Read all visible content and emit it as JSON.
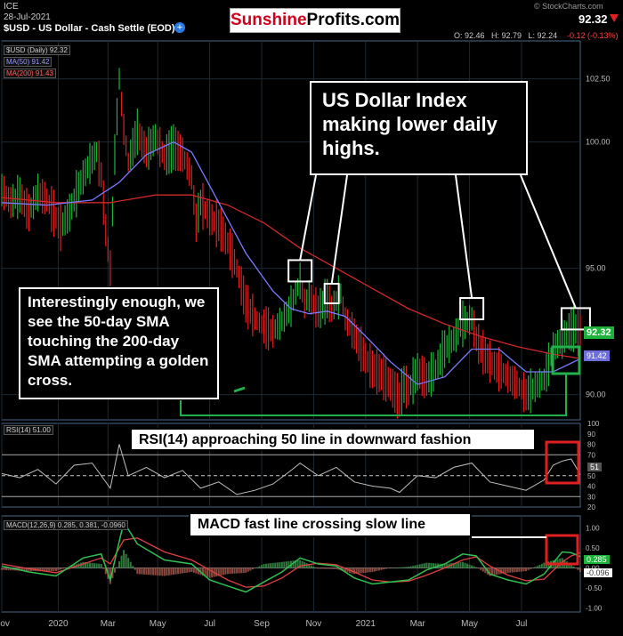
{
  "header": {
    "exchange": "ICE",
    "date": "28-Jul-2021",
    "title": "$USD - US Dollar - Cash Settle (EOD)",
    "credit": "© StockCharts.com",
    "last_price": "92.32",
    "ohlc": "O: 92.46   H: 92.79   L: 92.24",
    "change": "-0.12 (-0.13%)",
    "logo_part1": "Sunshine",
    "logo_part2": "Profits.com"
  },
  "legend": {
    "usd": "$USD (Daily) 92.32",
    "ma50": "MA(50) 91.42",
    "ma200": "MA(200) 91.43",
    "rsi": "RSI(14) 51.00",
    "macd": "MACD(12,26,9) 0.285, 0.381, -0.0960"
  },
  "annotations": {
    "highs": "US Dollar Index making lower daily highs.",
    "golden": "Interestingly enough, we see the 50-day SMA touching the 200-day SMA attempting a golden cross.",
    "rsi": "RSI(14) approaching 50 line in downward fashion",
    "macd": "MACD fast line crossing slow line"
  },
  "badges": {
    "price": "92.32",
    "ma": "91.42",
    "rsi": "51",
    "macd_fast": "0.285",
    "macd_hist": "-0.096"
  },
  "colors": {
    "price_up": "#1db33b",
    "price_down": "#e02020",
    "ma50": "#7b7bff",
    "ma200": "#d02828",
    "highlight_box": "#e02020",
    "cross_box": "#22b04b"
  },
  "chart_data": {
    "type": "line",
    "x_labels": [
      "Nov",
      "2020",
      "Mar",
      "May",
      "Jul",
      "Sep",
      "Nov",
      "2021",
      "Mar",
      "May",
      "Jul"
    ],
    "price_ticks": [
      90.0,
      95.0,
      100.0,
      102.5
    ],
    "price_range": [
      89,
      104
    ],
    "rsi_ticks": [
      20,
      30,
      40,
      50,
      60,
      70,
      80,
      90,
      100
    ],
    "rsi_range": [
      20,
      100
    ],
    "macd_ticks": [
      -1.0,
      -0.5,
      0,
      0.5,
      1.0
    ],
    "macd_range": [
      -1.1,
      1.3
    ],
    "price_series": [
      {
        "t": 0,
        "v": 98.1
      },
      {
        "t": 2,
        "v": 97.6
      },
      {
        "t": 4,
        "v": 97.9
      },
      {
        "t": 6,
        "v": 97.2
      },
      {
        "t": 8,
        "v": 98.0
      },
      {
        "t": 10,
        "v": 97.7
      },
      {
        "t": 12,
        "v": 97.0
      },
      {
        "t": 13,
        "v": 96.6
      },
      {
        "t": 15,
        "v": 97.2
      },
      {
        "t": 17,
        "v": 98.2
      },
      {
        "t": 19,
        "v": 99.0
      },
      {
        "t": 21,
        "v": 99.6
      },
      {
        "t": 22,
        "v": 98.7
      },
      {
        "t": 23,
        "v": 96.5
      },
      {
        "t": 24,
        "v": 95.0
      },
      {
        "t": 25,
        "v": 99.5
      },
      {
        "t": 26,
        "v": 102.5
      },
      {
        "t": 27,
        "v": 100.5
      },
      {
        "t": 28,
        "v": 99.2
      },
      {
        "t": 30,
        "v": 100.4
      },
      {
        "t": 32,
        "v": 99.6
      },
      {
        "t": 34,
        "v": 100.2
      },
      {
        "t": 36,
        "v": 99.4
      },
      {
        "t": 38,
        "v": 99.8
      },
      {
        "t": 40,
        "v": 99.5
      },
      {
        "t": 42,
        "v": 98.6
      },
      {
        "t": 43,
        "v": 96.8
      },
      {
        "t": 44,
        "v": 97.6
      },
      {
        "t": 46,
        "v": 97.0
      },
      {
        "t": 48,
        "v": 96.7
      },
      {
        "t": 50,
        "v": 96.0
      },
      {
        "t": 52,
        "v": 95.0
      },
      {
        "t": 54,
        "v": 93.6
      },
      {
        "t": 56,
        "v": 93.0
      },
      {
        "t": 58,
        "v": 92.7
      },
      {
        "t": 60,
        "v": 92.5
      },
      {
        "t": 62,
        "v": 92.9
      },
      {
        "t": 64,
        "v": 93.5
      },
      {
        "t": 66,
        "v": 94.5
      },
      {
        "t": 67,
        "v": 93.6
      },
      {
        "t": 68,
        "v": 93.9
      },
      {
        "t": 70,
        "v": 93.3
      },
      {
        "t": 72,
        "v": 93.8
      },
      {
        "t": 73,
        "v": 93.4
      },
      {
        "t": 75,
        "v": 94.0
      },
      {
        "t": 76,
        "v": 93.0
      },
      {
        "t": 78,
        "v": 92.4
      },
      {
        "t": 80,
        "v": 91.6
      },
      {
        "t": 82,
        "v": 91.0
      },
      {
        "t": 84,
        "v": 90.8
      },
      {
        "t": 86,
        "v": 90.4
      },
      {
        "t": 88,
        "v": 89.8
      },
      {
        "t": 89,
        "v": 90.4
      },
      {
        "t": 90,
        "v": 90.2
      },
      {
        "t": 92,
        "v": 90.9
      },
      {
        "t": 94,
        "v": 90.6
      },
      {
        "t": 96,
        "v": 91.0
      },
      {
        "t": 98,
        "v": 91.8
      },
      {
        "t": 100,
        "v": 92.2
      },
      {
        "t": 102,
        "v": 92.8
      },
      {
        "t": 104,
        "v": 93.0
      },
      {
        "t": 105,
        "v": 92.2
      },
      {
        "t": 106,
        "v": 91.8
      },
      {
        "t": 108,
        "v": 91.3
      },
      {
        "t": 110,
        "v": 91.0
      },
      {
        "t": 112,
        "v": 90.7
      },
      {
        "t": 114,
        "v": 90.4
      },
      {
        "t": 116,
        "v": 90.0
      },
      {
        "t": 118,
        "v": 90.3
      },
      {
        "t": 120,
        "v": 90.6
      },
      {
        "t": 122,
        "v": 91.8
      },
      {
        "t": 124,
        "v": 92.2
      },
      {
        "t": 125,
        "v": 92.4
      },
      {
        "t": 126,
        "v": 92.6
      },
      {
        "t": 127,
        "v": 92.6
      },
      {
        "t": 128,
        "v": 92.32
      }
    ],
    "ma50_series": [
      {
        "t": 0,
        "v": 97.6
      },
      {
        "t": 10,
        "v": 97.5
      },
      {
        "t": 20,
        "v": 97.7
      },
      {
        "t": 26,
        "v": 98.4
      },
      {
        "t": 32,
        "v": 99.5
      },
      {
        "t": 38,
        "v": 100.0
      },
      {
        "t": 42,
        "v": 99.6
      },
      {
        "t": 48,
        "v": 97.6
      },
      {
        "t": 54,
        "v": 95.6
      },
      {
        "t": 60,
        "v": 94.1
      },
      {
        "t": 64,
        "v": 93.4
      },
      {
        "t": 68,
        "v": 93.2
      },
      {
        "t": 72,
        "v": 93.3
      },
      {
        "t": 76,
        "v": 93.1
      },
      {
        "t": 80,
        "v": 92.4
      },
      {
        "t": 86,
        "v": 91.3
      },
      {
        "t": 92,
        "v": 90.4
      },
      {
        "t": 98,
        "v": 90.7
      },
      {
        "t": 104,
        "v": 91.8
      },
      {
        "t": 110,
        "v": 91.8
      },
      {
        "t": 116,
        "v": 90.9
      },
      {
        "t": 122,
        "v": 90.9
      },
      {
        "t": 128,
        "v": 91.42
      }
    ],
    "ma200_series": [
      {
        "t": 0,
        "v": 97.8
      },
      {
        "t": 12,
        "v": 97.6
      },
      {
        "t": 24,
        "v": 97.6
      },
      {
        "t": 34,
        "v": 97.9
      },
      {
        "t": 42,
        "v": 97.9
      },
      {
        "t": 50,
        "v": 97.5
      },
      {
        "t": 58,
        "v": 96.8
      },
      {
        "t": 66,
        "v": 95.8
      },
      {
        "t": 74,
        "v": 95.0
      },
      {
        "t": 82,
        "v": 94.2
      },
      {
        "t": 90,
        "v": 93.4
      },
      {
        "t": 98,
        "v": 92.8
      },
      {
        "t": 106,
        "v": 92.3
      },
      {
        "t": 114,
        "v": 91.9
      },
      {
        "t": 122,
        "v": 91.6
      },
      {
        "t": 128,
        "v": 91.43
      }
    ],
    "rsi_series": [
      {
        "t": 0,
        "v": 52
      },
      {
        "t": 4,
        "v": 48
      },
      {
        "t": 8,
        "v": 56
      },
      {
        "t": 12,
        "v": 42
      },
      {
        "t": 16,
        "v": 60
      },
      {
        "t": 20,
        "v": 62
      },
      {
        "t": 24,
        "v": 38
      },
      {
        "t": 26,
        "v": 80
      },
      {
        "t": 28,
        "v": 50
      },
      {
        "t": 32,
        "v": 58
      },
      {
        "t": 36,
        "v": 48
      },
      {
        "t": 40,
        "v": 55
      },
      {
        "t": 44,
        "v": 38
      },
      {
        "t": 48,
        "v": 44
      },
      {
        "t": 52,
        "v": 32
      },
      {
        "t": 56,
        "v": 36
      },
      {
        "t": 60,
        "v": 42
      },
      {
        "t": 64,
        "v": 55
      },
      {
        "t": 66,
        "v": 62
      },
      {
        "t": 70,
        "v": 50
      },
      {
        "t": 74,
        "v": 58
      },
      {
        "t": 78,
        "v": 44
      },
      {
        "t": 82,
        "v": 40
      },
      {
        "t": 86,
        "v": 38
      },
      {
        "t": 88,
        "v": 34
      },
      {
        "t": 92,
        "v": 50
      },
      {
        "t": 96,
        "v": 48
      },
      {
        "t": 100,
        "v": 58
      },
      {
        "t": 104,
        "v": 62
      },
      {
        "t": 108,
        "v": 44
      },
      {
        "t": 112,
        "v": 40
      },
      {
        "t": 116,
        "v": 36
      },
      {
        "t": 120,
        "v": 46
      },
      {
        "t": 122,
        "v": 60
      },
      {
        "t": 124,
        "v": 64
      },
      {
        "t": 126,
        "v": 66
      },
      {
        "t": 128,
        "v": 51
      }
    ],
    "macd_fast": [
      {
        "t": 0,
        "v": 0.05
      },
      {
        "t": 6,
        "v": -0.1
      },
      {
        "t": 12,
        "v": -0.2
      },
      {
        "t": 18,
        "v": 0.25
      },
      {
        "t": 22,
        "v": 0.35
      },
      {
        "t": 24,
        "v": -0.3
      },
      {
        "t": 27,
        "v": 1.15
      },
      {
        "t": 30,
        "v": 0.6
      },
      {
        "t": 36,
        "v": 0.2
      },
      {
        "t": 42,
        "v": 0.1
      },
      {
        "t": 46,
        "v": -0.3
      },
      {
        "t": 50,
        "v": -0.45
      },
      {
        "t": 54,
        "v": -0.6
      },
      {
        "t": 58,
        "v": -0.35
      },
      {
        "t": 62,
        "v": -0.1
      },
      {
        "t": 66,
        "v": 0.25
      },
      {
        "t": 70,
        "v": 0.1
      },
      {
        "t": 74,
        "v": 0.05
      },
      {
        "t": 78,
        "v": -0.25
      },
      {
        "t": 82,
        "v": -0.4
      },
      {
        "t": 86,
        "v": -0.35
      },
      {
        "t": 90,
        "v": -0.3
      },
      {
        "t": 94,
        "v": -0.05
      },
      {
        "t": 98,
        "v": 0.1
      },
      {
        "t": 102,
        "v": 0.35
      },
      {
        "t": 105,
        "v": 0.3
      },
      {
        "t": 108,
        "v": -0.15
      },
      {
        "t": 112,
        "v": -0.3
      },
      {
        "t": 116,
        "v": -0.4
      },
      {
        "t": 120,
        "v": -0.15
      },
      {
        "t": 124,
        "v": 0.4
      },
      {
        "t": 126,
        "v": 0.38
      },
      {
        "t": 128,
        "v": 0.285
      }
    ],
    "macd_slow": [
      {
        "t": 0,
        "v": 0.1
      },
      {
        "t": 6,
        "v": -0.02
      },
      {
        "t": 12,
        "v": -0.12
      },
      {
        "t": 18,
        "v": 0.1
      },
      {
        "t": 22,
        "v": 0.25
      },
      {
        "t": 24,
        "v": 0.1
      },
      {
        "t": 27,
        "v": 0.7
      },
      {
        "t": 30,
        "v": 0.75
      },
      {
        "t": 36,
        "v": 0.4
      },
      {
        "t": 42,
        "v": 0.2
      },
      {
        "t": 46,
        "v": -0.05
      },
      {
        "t": 50,
        "v": -0.3
      },
      {
        "t": 54,
        "v": -0.48
      },
      {
        "t": 58,
        "v": -0.45
      },
      {
        "t": 62,
        "v": -0.25
      },
      {
        "t": 66,
        "v": 0.05
      },
      {
        "t": 70,
        "v": 0.12
      },
      {
        "t": 74,
        "v": 0.08
      },
      {
        "t": 78,
        "v": -0.1
      },
      {
        "t": 82,
        "v": -0.3
      },
      {
        "t": 86,
        "v": -0.35
      },
      {
        "t": 90,
        "v": -0.33
      },
      {
        "t": 94,
        "v": -0.18
      },
      {
        "t": 98,
        "v": 0.0
      },
      {
        "t": 102,
        "v": 0.2
      },
      {
        "t": 105,
        "v": 0.28
      },
      {
        "t": 108,
        "v": 0.05
      },
      {
        "t": 112,
        "v": -0.18
      },
      {
        "t": 116,
        "v": -0.32
      },
      {
        "t": 120,
        "v": -0.28
      },
      {
        "t": 124,
        "v": 0.15
      },
      {
        "t": 126,
        "v": 0.3
      },
      {
        "t": 128,
        "v": 0.381
      }
    ]
  }
}
